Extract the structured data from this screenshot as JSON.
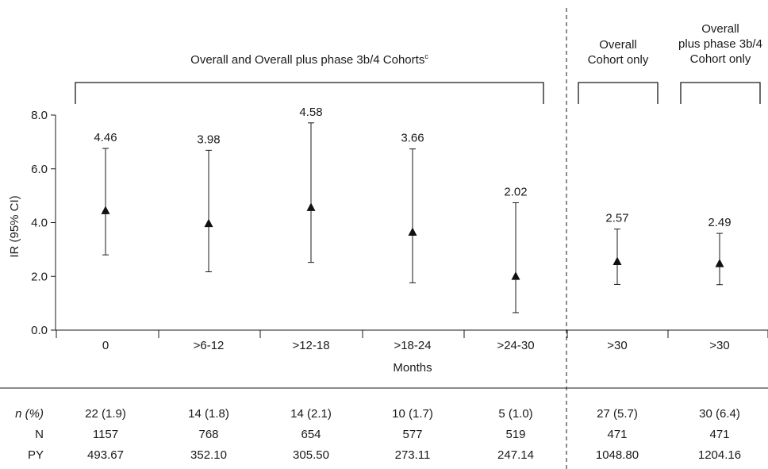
{
  "chart_data": {
    "type": "scatter",
    "ylabel": "IR (95% CI)",
    "xlabel": "Months",
    "ylim": [
      0,
      8
    ],
    "yticks": [
      "0.0",
      "2.0",
      "4.0",
      "6.0",
      "8.0"
    ],
    "categories": [
      "0",
      ">6-12",
      ">12-18",
      ">18-24",
      ">24-30",
      ">30",
      ">30"
    ],
    "values": [
      4.46,
      3.98,
      4.58,
      3.66,
      2.02,
      2.57,
      2.49
    ],
    "ci_lower": [
      2.8,
      2.17,
      2.52,
      1.76,
      0.65,
      1.7,
      1.69
    ],
    "ci_upper": [
      6.76,
      6.69,
      7.71,
      6.74,
      4.74,
      3.76,
      3.6
    ],
    "value_labels": [
      "4.46",
      "3.98",
      "4.58",
      "3.66",
      "2.02",
      "2.57",
      "2.49"
    ],
    "groups": [
      {
        "label": "Overall and Overall plus phase 3b/4 Cohorts",
        "label_sup": "c"
      },
      {
        "label_lines": [
          "Overall",
          "Cohort only"
        ]
      },
      {
        "label_lines": [
          "Overall",
          "plus phase 3b/4",
          "Cohort only"
        ]
      }
    ],
    "marker": "triangle",
    "grid": false
  },
  "table": {
    "rows": [
      {
        "label": "n (%)",
        "italic": true,
        "cells": [
          "22 (1.9)",
          "14 (1.8)",
          "14 (2.1)",
          "10 (1.7)",
          "5 (1.0)",
          "27 (5.7)",
          "30 (6.4)"
        ]
      },
      {
        "label": "N",
        "italic": false,
        "cells": [
          "1157",
          "768",
          "654",
          "577",
          "519",
          "471",
          "471"
        ]
      },
      {
        "label": "PY",
        "italic": false,
        "cells": [
          "493.67",
          "352.10",
          "305.50",
          "273.11",
          "247.14",
          "1048.80",
          "1204.16"
        ]
      }
    ]
  }
}
